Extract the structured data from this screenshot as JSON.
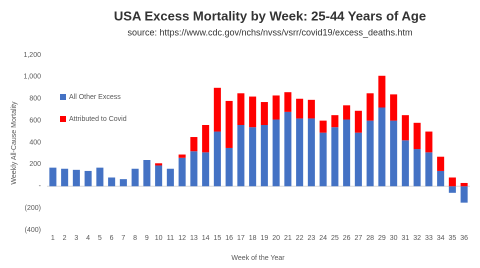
{
  "chart_data": {
    "type": "stacked_bar",
    "title": "USA Excess Mortality by Week: 25-44 Years of Age",
    "subtitle": "source: https://www.cdc.gov/nchs/nvss/vsrr/covid19/excess_deaths.htm",
    "y_label": "Weekly All-Cause Mortality",
    "x_label": "Week of the Year",
    "categories": [
      "1",
      "2",
      "3",
      "4",
      "5",
      "6",
      "7",
      "8",
      "9",
      "10",
      "11",
      "12",
      "13",
      "14",
      "15",
      "16",
      "17",
      "18",
      "19",
      "20",
      "21",
      "22",
      "23",
      "24",
      "25",
      "26",
      "27",
      "28",
      "29",
      "30",
      "31",
      "32",
      "33",
      "34",
      "35",
      "36"
    ],
    "series": [
      {
        "name": "All Other Excess",
        "color": "#4472c4",
        "values": [
          170,
          160,
          150,
          140,
          170,
          80,
          65,
          160,
          240,
          190,
          160,
          260,
          320,
          310,
          500,
          350,
          560,
          540,
          560,
          610,
          680,
          620,
          620,
          490,
          540,
          610,
          490,
          600,
          720,
          600,
          420,
          340,
          310,
          140,
          -60,
          -150
        ]
      },
      {
        "name": "Attributed to Covid",
        "color": "#ff0000",
        "values": [
          0,
          0,
          0,
          0,
          0,
          0,
          0,
          0,
          0,
          20,
          0,
          30,
          130,
          250,
          400,
          430,
          290,
          280,
          210,
          220,
          180,
          180,
          170,
          110,
          110,
          130,
          200,
          250,
          290,
          240,
          230,
          240,
          190,
          130,
          80,
          30
        ]
      }
    ],
    "ylim": [
      -400,
      1200
    ],
    "yticks": [
      {
        "value": -400,
        "label": "(400)"
      },
      {
        "value": -200,
        "label": "(200)"
      },
      {
        "value": 0,
        "label": "-"
      },
      200,
      400,
      600,
      800,
      {
        "value": 1000,
        "label": "1,000"
      },
      {
        "value": 1200,
        "label": "1,200"
      }
    ],
    "legend": "upper left"
  }
}
